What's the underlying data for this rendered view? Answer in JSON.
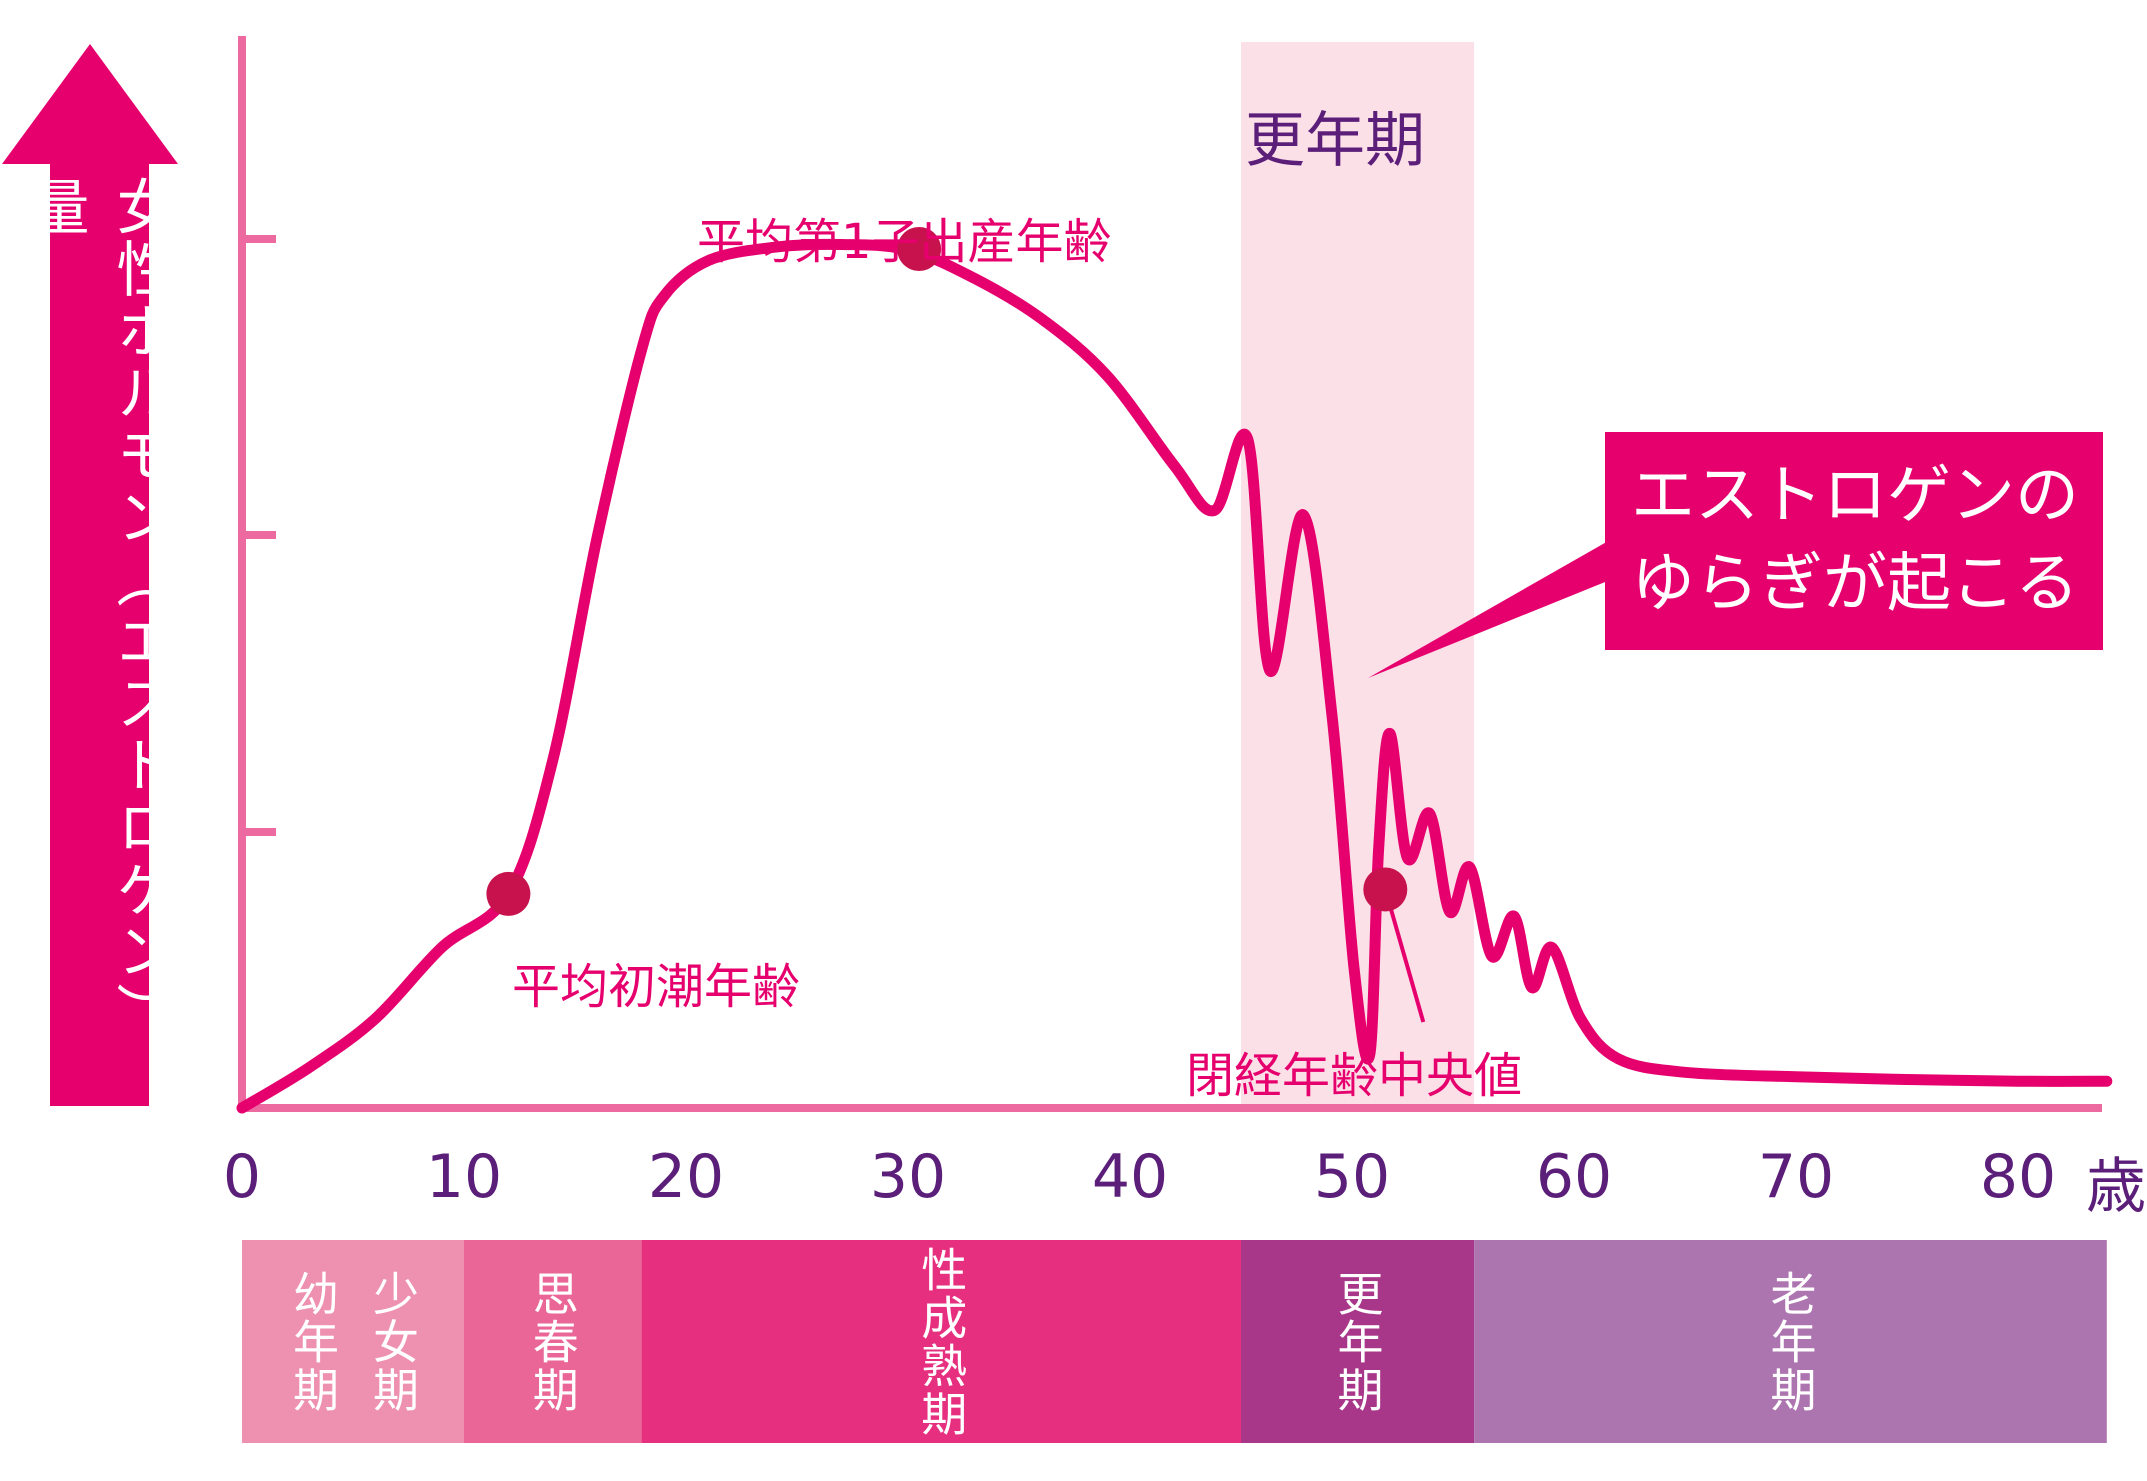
{
  "chart_data": {
    "type": "line",
    "title": "",
    "ylabel": "女性ホルモン（エストロゲン）量",
    "xlabel": "",
    "x_unit": "歳",
    "x_ticks": [
      "0",
      "10",
      "20",
      "30",
      "40",
      "50",
      "60",
      "70",
      "80"
    ],
    "xlim": [
      0,
      84
    ],
    "ylim": [
      0,
      100
    ],
    "series": [
      {
        "x": [
          0,
          3,
          6,
          9,
          12,
          14,
          16,
          18,
          19,
          21,
          24,
          27,
          30,
          33,
          36,
          39,
          42,
          43.8,
          45.3,
          46.3,
          47.8,
          49.1,
          50.1,
          50.8,
          51.2,
          51.7,
          52.5,
          53.5,
          54.4,
          55.3,
          56.3,
          57.3,
          58.1,
          59.0,
          60.3,
          62,
          65,
          70,
          75,
          80,
          84
        ],
        "y": [
          0,
          4.5,
          10,
          18,
          24,
          39,
          64,
          85,
          91,
          95,
          96.5,
          96.8,
          96.2,
          93,
          88.5,
          82,
          72,
          67,
          75,
          49,
          66.5,
          44,
          15.5,
          6,
          29,
          42,
          28,
          33,
          22,
          27,
          17,
          21.5,
          13.5,
          18,
          10,
          5.5,
          4,
          3.5,
          3.2,
          3.0,
          3.0
        ]
      }
    ],
    "annotations": [
      {
        "label": "平均初潮年齢",
        "x": 12,
        "y": 24
      },
      {
        "label": "平均第1子出産年齢",
        "x": 30.5,
        "y": 96.3
      },
      {
        "label": "閉経年齢中央値",
        "x": 51.5,
        "y": 24.5
      }
    ],
    "highlight_band": {
      "label": "更年期",
      "x_start": 45,
      "x_end": 55.5
    },
    "callout": [
      "エストロゲンの",
      "ゆらぎが起こる"
    ],
    "stages": [
      {
        "labels": [
          "少女期",
          "幼年期"
        ],
        "x_start": 0,
        "x_end": 10
      },
      {
        "labels": [
          "思春期"
        ],
        "x_start": 10,
        "x_end": 18
      },
      {
        "labels": [
          "性成熟期"
        ],
        "x_start": 18,
        "x_end": 45
      },
      {
        "labels": [
          "更年期"
        ],
        "x_start": 45,
        "x_end": 55.5
      },
      {
        "labels": [
          "老年期"
        ],
        "x_start": 55.5,
        "x_end": 84
      }
    ],
    "colors": {
      "curve": "#e6006e",
      "axis": "#ec6aa0",
      "band": "#fce0e8",
      "marker": "#c7124e",
      "arrow": "#e6006e",
      "tick_text": "#5b1f7a",
      "stage_colors": [
        "#ee90b0",
        "#e96696",
        "#e6307f",
        "#a93789",
        "#ad75b0"
      ]
    }
  }
}
